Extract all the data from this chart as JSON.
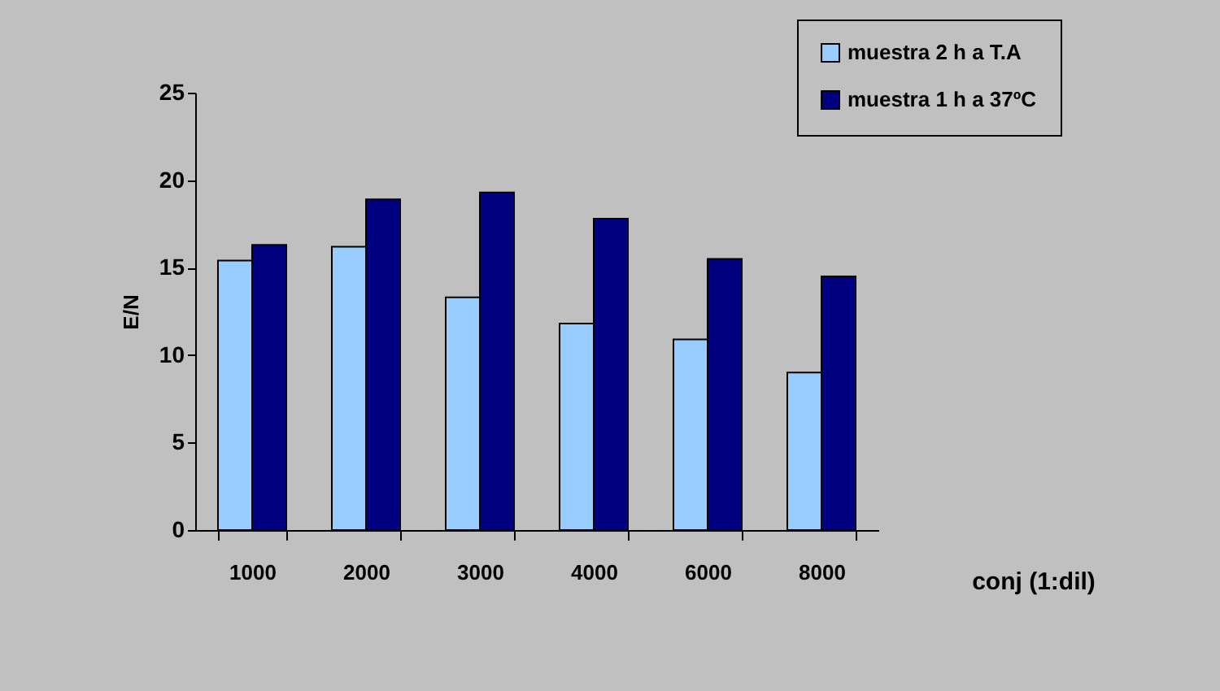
{
  "chart_data": {
    "type": "bar",
    "xlabel": "conj (1:dil)",
    "ylabel": "E/N",
    "categories": [
      "1000",
      "2000",
      "3000",
      "4000",
      "6000",
      "8000"
    ],
    "series": [
      {
        "name": "muestra 2 h a T.A",
        "color": "#99ccff",
        "values": [
          15.4,
          16.2,
          13.3,
          11.8,
          10.9,
          9.0
        ]
      },
      {
        "name": "muestra 1 h a 37ºC",
        "color": "#000080",
        "values": [
          16.3,
          18.9,
          19.3,
          17.8,
          15.5,
          14.5
        ]
      }
    ],
    "ylim": [
      0,
      25
    ],
    "yticks": [
      0,
      5,
      10,
      15,
      20,
      25
    ],
    "grid": false,
    "legend": "top right"
  }
}
